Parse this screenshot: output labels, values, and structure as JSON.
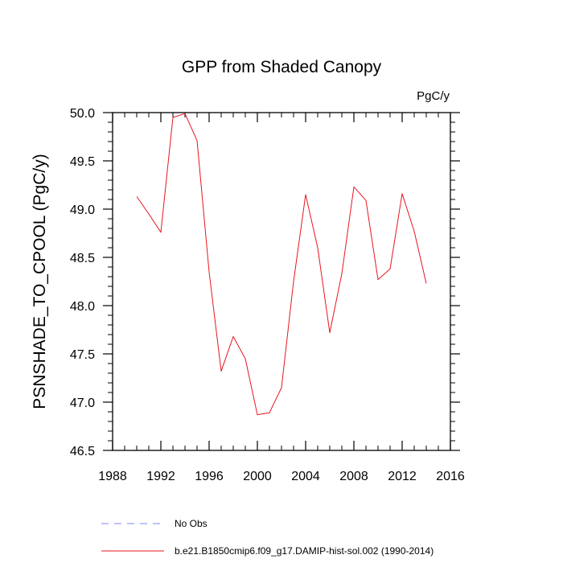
{
  "chart_data": {
    "type": "line",
    "title": "GPP from Shaded Canopy",
    "units_label": "PgC/y",
    "xlabel": "",
    "ylabel": "PSNSHADE_TO_CPOOL  (PgC/y)",
    "xlim": [
      1988,
      2016
    ],
    "ylim": [
      46.5,
      50.0
    ],
    "x_ticks": [
      1988,
      1992,
      1996,
      2000,
      2004,
      2008,
      2012,
      2016
    ],
    "x_tick_labels": [
      "1988",
      "1992",
      "1996",
      "2000",
      "2004",
      "2008",
      "2012",
      "2016"
    ],
    "y_ticks": [
      46.5,
      47.0,
      47.5,
      48.0,
      48.5,
      49.0,
      49.5,
      50.0
    ],
    "y_tick_labels": [
      "46.5",
      "47.0",
      "47.5",
      "48.0",
      "48.5",
      "49.0",
      "49.5",
      "50.0"
    ],
    "grid": false,
    "series": [
      {
        "name": "b.e21.B1850cmip6.f09_g17.DAMIP-hist-sol.002 (1990-2014)",
        "color": "#e8141e",
        "style": "solid",
        "x": [
          1990,
          1991,
          1992,
          1993,
          1994,
          1995,
          1996,
          1997,
          1998,
          1999,
          2000,
          2001,
          2002,
          2003,
          2004,
          2005,
          2006,
          2007,
          2008,
          2009,
          2010,
          2011,
          2012,
          2013,
          2014
        ],
        "y": [
          49.13,
          48.95,
          48.76,
          49.95,
          49.99,
          49.71,
          48.35,
          47.32,
          47.68,
          47.45,
          46.87,
          46.89,
          47.15,
          48.25,
          49.15,
          48.6,
          47.72,
          48.33,
          49.23,
          49.09,
          48.27,
          48.38,
          49.16,
          48.77,
          48.23
        ]
      }
    ],
    "legend": {
      "placement": "bottom-left",
      "entries": [
        {
          "label": "No Obs",
          "color": "#8080ff",
          "style": "dashed"
        },
        {
          "label": "b.e21.B1850cmip6.f09_g17.DAMIP-hist-sol.002 (1990-2014)",
          "color": "#e8141e",
          "style": "solid"
        }
      ]
    }
  }
}
